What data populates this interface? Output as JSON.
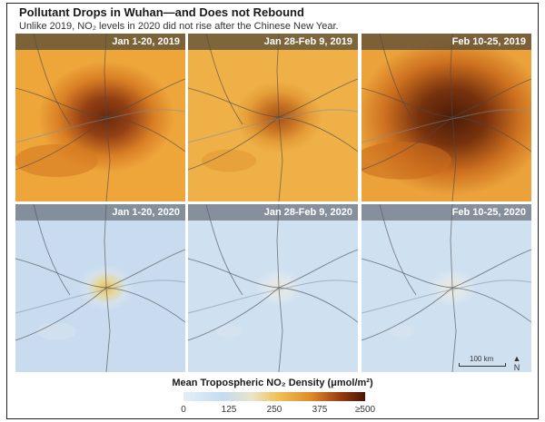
{
  "title": "Pollutant Drops in Wuhan—and Does not Rebound",
  "subtitle": "Unlike 2019, NO₂ levels in 2020 did not rise after the Chinese New Year.",
  "panels": [
    {
      "label": "Jan 1-20, 2019",
      "level": "high"
    },
    {
      "label": "Jan 28-Feb 9, 2019",
      "level": "medium"
    },
    {
      "label": "Feb 10-25, 2019",
      "level": "very-high"
    },
    {
      "label": "Jan 1-20, 2020",
      "level": "low"
    },
    {
      "label": "Jan 28-Feb 9, 2020",
      "level": "very-low"
    },
    {
      "label": "Feb 10-25, 2020",
      "level": "very-low"
    }
  ],
  "scale_bar": {
    "label": "100 km"
  },
  "north_arrow": {
    "label": "N"
  },
  "legend": {
    "title": "Mean Tropospheric NO₂ Density (μmol/m²)",
    "ticks": [
      "0",
      "125",
      "250",
      "375",
      "≥500"
    ],
    "colors": [
      "#e4eef8",
      "#c4dcf0",
      "#e9e4c8",
      "#f0c057",
      "#e08a2a",
      "#9c3c10",
      "#4a1504"
    ]
  }
}
